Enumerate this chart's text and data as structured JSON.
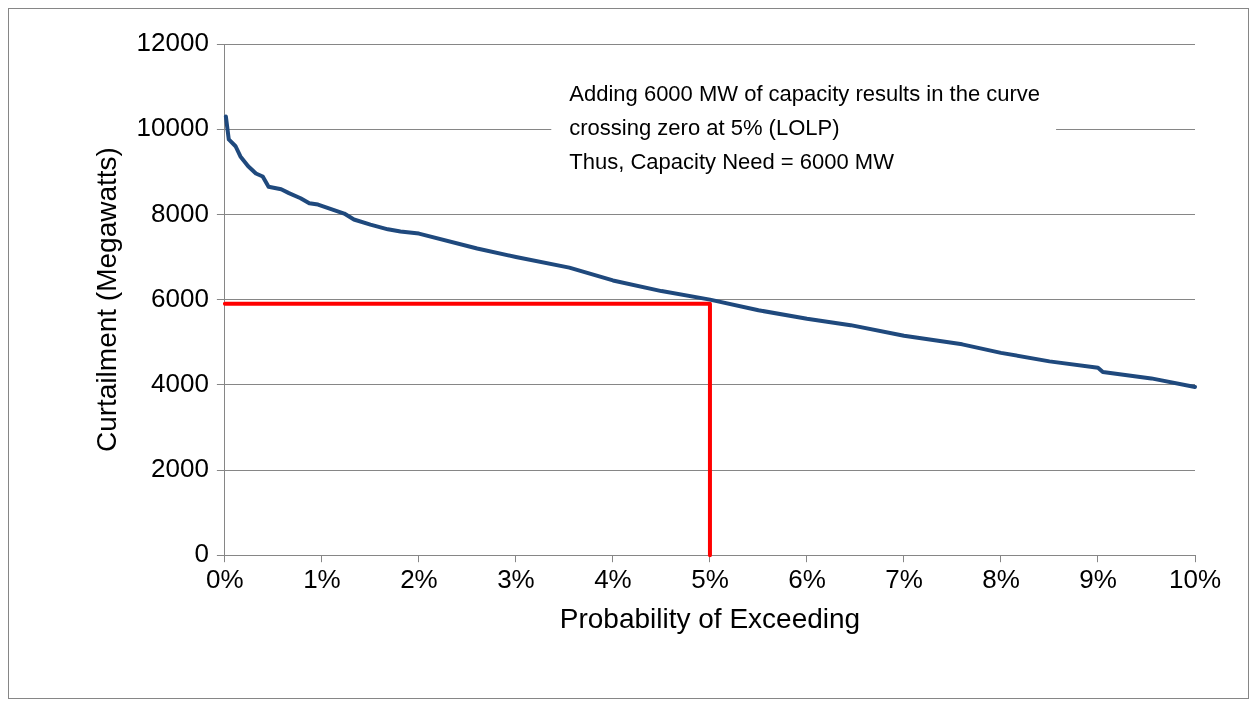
{
  "chart_data": {
    "type": "line",
    "xlabel": "Probability of Exceeding",
    "ylabel": "Curtailment (Megawatts)",
    "annotations": [
      "Adding 6000 MW of capacity results in the curve",
      "crossing zero at 5% (LOLP)",
      "Thus, Capacity Need = 6000 MW"
    ],
    "series": [
      {
        "color": "#1f497d",
        "x": [
          0.01,
          0.04,
          0.11,
          0.16,
          0.24,
          0.32,
          0.39,
          0.45,
          0.58,
          0.66,
          0.78,
          0.87,
          0.96,
          1.23,
          1.33,
          1.5,
          1.68,
          1.81,
          2,
          2.6,
          3,
          3.55,
          4,
          4.5,
          5,
          5.5,
          6,
          6.45,
          7,
          7.6,
          8,
          8.5,
          9,
          9.05,
          9.55,
          10
        ],
        "values": [
          10300,
          9760,
          9600,
          9360,
          9130,
          8960,
          8890,
          8650,
          8590,
          8500,
          8380,
          8260,
          8230,
          8020,
          7880,
          7760,
          7650,
          7600,
          7550,
          7200,
          7000,
          6750,
          6450,
          6200,
          6000,
          5750,
          5550,
          5400,
          5150,
          4950,
          4750,
          4550,
          4400,
          4300,
          4150,
          3950
        ]
      },
      {
        "type": "line",
        "color": "#ff0000",
        "x": [
          0,
          5,
          5
        ],
        "values": [
          5900,
          5900,
          0
        ]
      }
    ],
    "xlim": [
      0,
      10
    ],
    "xticks": [
      {
        "value": 0,
        "label": "0%"
      },
      {
        "value": 1,
        "label": "1%"
      },
      {
        "value": 2,
        "label": "2%"
      },
      {
        "value": 3,
        "label": "3%"
      },
      {
        "value": 4,
        "label": "4%"
      },
      {
        "value": 5,
        "label": "5%"
      },
      {
        "value": 6,
        "label": "6%"
      },
      {
        "value": 7,
        "label": "7%"
      },
      {
        "value": 8,
        "label": "8%"
      },
      {
        "value": 9,
        "label": "9%"
      },
      {
        "value": 10,
        "label": "10%"
      }
    ],
    "ylim": [
      0,
      12000
    ],
    "yticks": [
      0,
      2000,
      4000,
      6000,
      8000,
      10000,
      12000
    ],
    "grid": "y",
    "legend": false,
    "marker": "none",
    "line_style": "solid"
  }
}
